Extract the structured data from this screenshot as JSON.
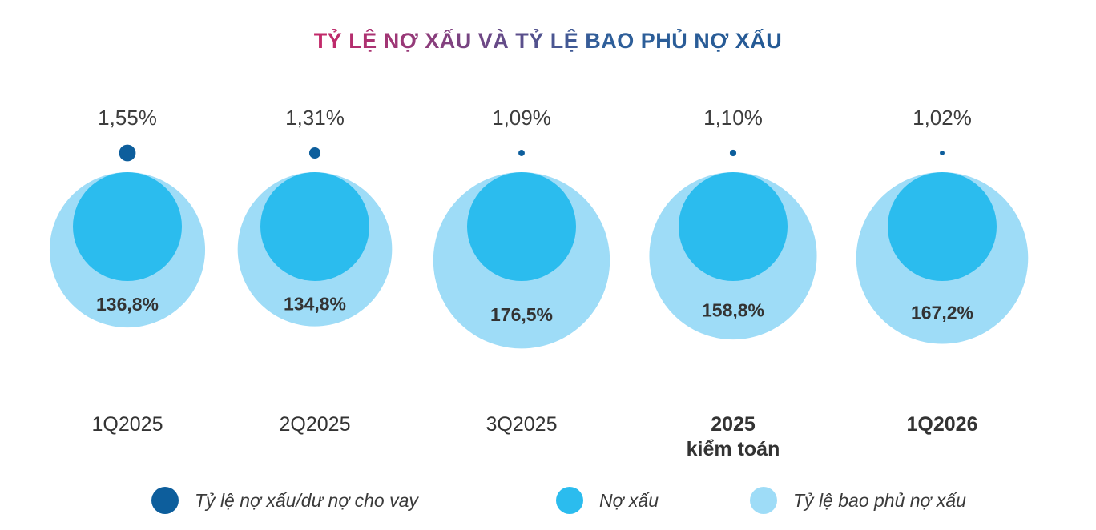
{
  "chart_data": {
    "type": "bubble",
    "title": "TỶ LỆ NỢ XẤU VÀ TỶ LỆ BAO PHỦ NỢ XẤU",
    "categories": [
      "1Q2025",
      "2Q2025",
      "3Q2025",
      "2025\nkiểm toán",
      "1Q2026"
    ],
    "category_bold": [
      false,
      false,
      false,
      true,
      true
    ],
    "series": [
      {
        "name": "Tỷ lệ nợ xấu/dư nợ cho vay",
        "values": [
          1.55,
          1.31,
          1.09,
          1.1,
          1.02
        ],
        "labels": [
          "1,55%",
          "1,31%",
          "1,09%",
          "1,10%",
          "1,02%"
        ],
        "color": "#0d5e9c"
      },
      {
        "name": "Nợ xấu",
        "values": [
          100,
          100,
          100,
          100,
          100
        ],
        "color": "#2bbcee"
      },
      {
        "name": "Tỷ lệ bao phủ nợ xấu",
        "values": [
          136.8,
          134.8,
          176.5,
          158.8,
          167.2
        ],
        "labels": [
          "136,8%",
          "134,8%",
          "176,5%",
          "158,8%",
          "167,2%"
        ],
        "color": "#9edcf7"
      }
    ],
    "legend_position": "bottom"
  }
}
